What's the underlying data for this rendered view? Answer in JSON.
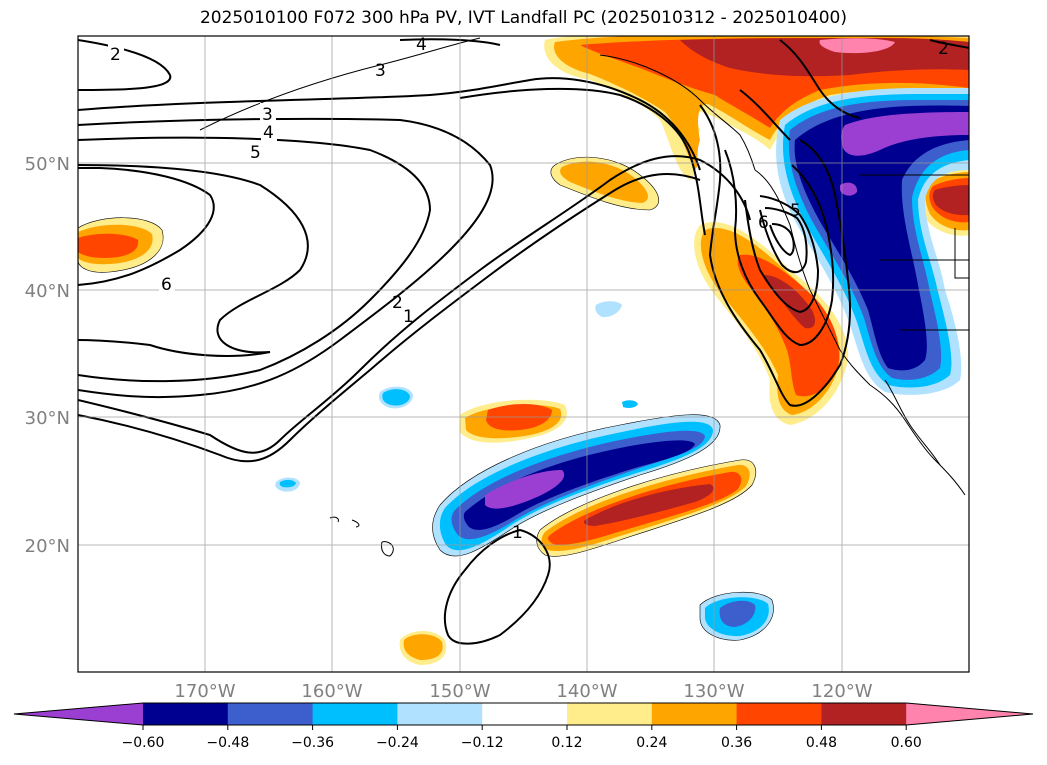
{
  "title": "2025010100 F072 300 hPa PV, IVT Landfall PC (2025010312 - 2025010400)",
  "lat_labels": [
    "50°N",
    "40°N",
    "30°N",
    "20°N"
  ],
  "lon_labels": [
    "170°W",
    "160°W",
    "150°W",
    "140°W",
    "130°W",
    "120°W"
  ],
  "contour_labels": [
    "2",
    "3",
    "4",
    "5",
    "6",
    "2",
    "1",
    "1",
    "6",
    "3",
    "4",
    "5",
    "2"
  ],
  "colorbar": {
    "ticks": [
      "−0.60",
      "−0.48",
      "−0.36",
      "−0.24",
      "−0.12",
      "0.12",
      "0.24",
      "0.36",
      "0.48",
      "0.60"
    ],
    "colors": [
      "#9b3fd2",
      "#000090",
      "#3c5fcd",
      "#00bfff",
      "#b0e2ff",
      "#ffffff",
      "#ffec8b",
      "#ffa500",
      "#ff4500",
      "#b22222",
      "#ff83ac"
    ]
  },
  "map_extent": {
    "lon_min": -180,
    "lon_max": -110,
    "lat_min": 10,
    "lat_max": 60
  },
  "projection": "PlateCarree",
  "gridlines": true
}
